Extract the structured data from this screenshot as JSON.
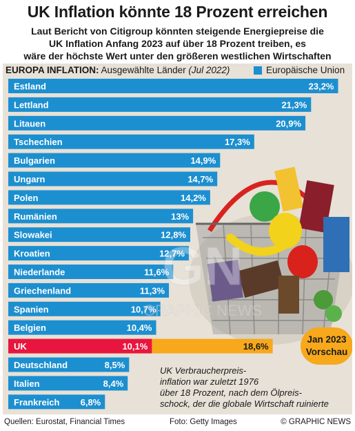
{
  "title": "UK Inflation könnte 18 Prozent erreichen",
  "subtitle_lines": [
    "Laut Bericht von Citigroup könnten steigende Energiepreise die",
    "UK Inflation Anfang 2023 auf über 18 Prozent treiben, es",
    "wäre der höchste Wert unter den größeren westlichen Wirtschaften"
  ],
  "chart_header": {
    "label_bold": "EUROPA INFLATION:",
    "label_rest": "Ausgewählte Länder",
    "period": "(Jul 2022)"
  },
  "colors": {
    "eu_bar": "#1c8fd0",
    "uk_bar": "#e8163e",
    "forecast_bar": "#f7a81b",
    "panel_bg": "#e7e1d7"
  },
  "chart_data": {
    "type": "bar",
    "orientation": "horizontal",
    "categories": [
      "Estland",
      "Lettland",
      "Litauen",
      "Tschechien",
      "Bulgarien",
      "Ungarn",
      "Polen",
      "Rumänien",
      "Slowakei",
      "Kroatien",
      "Niederlande",
      "Griechenland",
      "Spanien",
      "Belgien",
      "UK",
      "Deutschland",
      "Italien",
      "Frankreich"
    ],
    "values": [
      23.2,
      21.3,
      20.9,
      17.3,
      14.9,
      14.7,
      14.2,
      13.0,
      12.8,
      12.7,
      11.6,
      11.3,
      10.7,
      10.4,
      10.1,
      8.5,
      8.4,
      6.8
    ],
    "value_labels": [
      "23,2%",
      "21,3%",
      "20,9%",
      "17,3%",
      "14,9%",
      "14,7%",
      "14,2%",
      "13%",
      "12,8%",
      "12,7%",
      "11,6%",
      "11,3%",
      "10,7%",
      "10,4%",
      "10,1%",
      "8,5%",
      "8,4%",
      "6,8%"
    ],
    "highlight": "UK",
    "legend": [
      {
        "name": "Europäische Union",
        "color": "#1c8fd0"
      }
    ],
    "forecast": {
      "category": "UK",
      "value": 18.6,
      "value_label": "18,6%",
      "label_lines": [
        "Jan 2023",
        "Vorschau"
      ]
    },
    "xlim": [
      0,
      24
    ],
    "grid": false,
    "legend_position": "top-right"
  },
  "annotation_lines": [
    "UK Verbraucherpreis-",
    "inflation war zuletzt 1976",
    "über 18 Prozent, nach dem Ölpreis-",
    "schock, der die globale Wirtschaft ruinierte"
  ],
  "watermark": {
    "mark": "GN",
    "text": "GRAPHIC NEWS"
  },
  "footer": {
    "sources": "Quellen: Eurostat, Financial Times",
    "photo_credit": "Foto: Getty Images",
    "copyright": "© GRAPHIC NEWS"
  }
}
